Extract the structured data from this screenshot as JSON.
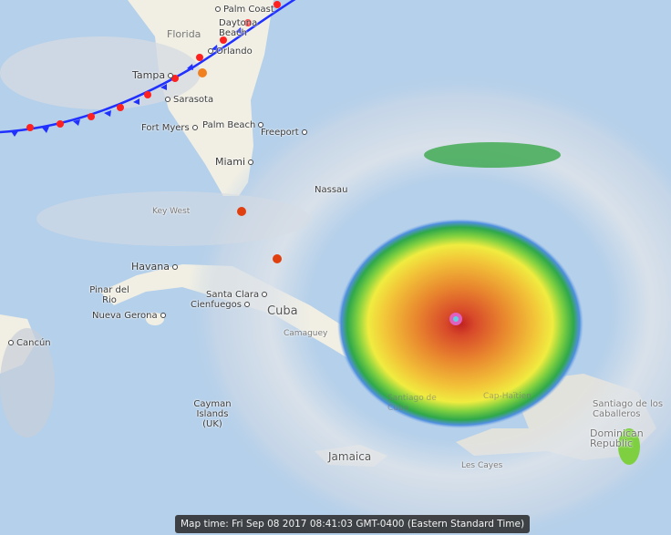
{
  "map_time_label": "Map time: Fri Sep 08 2017 08:41:03 GMT-0400 (Eastern Standard Time)",
  "places": {
    "palm_coast": "Palm Coast",
    "daytona": "Daytona Beach",
    "florida": "Florida",
    "orlando": "Orlando",
    "tampa": "Tampa",
    "sarasota": "Sarasota",
    "fort_myers": "Fort Myers",
    "palm_beach": "Palm Beach",
    "freeport": "Freeport",
    "miami": "Miami",
    "nassau": "Nassau",
    "key_west": "Key West",
    "havana": "Havana",
    "pinar_del_rio": "Pinar del Rio",
    "nueva_gerona": "Nueva Gerona",
    "santa_clara": "Santa Clara",
    "cienfuegos": "Cienfuegos",
    "cuba": "Cuba",
    "camaguey": "Camaguey",
    "cancun": "Cancún",
    "cayman": "Cayman Islands (UK)",
    "jamaica": "Jamaica",
    "santiago_de_cuba": "Santiago de Cuba",
    "cap_haitien": "Cap-Haïtien",
    "les_cayes": "Les Cayes",
    "santiago_caballeros": "Santiago de los Caballeros",
    "dominican_republic": "Dominican Republic"
  },
  "colors": {
    "water": "#b5d0ea",
    "land": "#f1efe4",
    "warm_front": "#ff2020",
    "cold_front": "#2030ff",
    "hurricane_icon": "#e04010"
  },
  "icons": [
    "hurricane-icon",
    "weather-front"
  ]
}
